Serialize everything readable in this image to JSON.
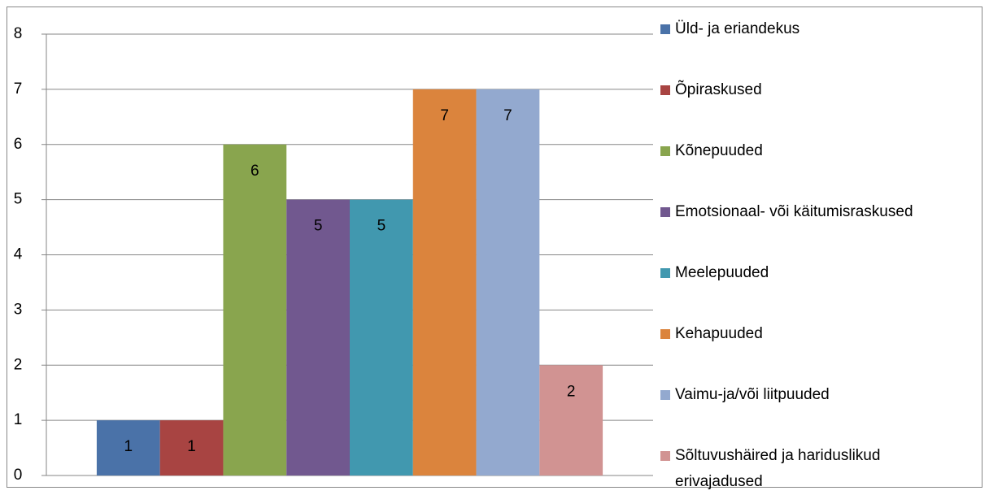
{
  "chart_data": {
    "type": "bar",
    "categories": [
      null
    ],
    "series": [
      {
        "name": "Üld- ja eriandekus",
        "color": "#4a72a8",
        "values": [
          1
        ]
      },
      {
        "name": "Õpiraskused",
        "color": "#a84442",
        "values": [
          1
        ]
      },
      {
        "name": "Kõnepuuded",
        "color": "#89a54e",
        "values": [
          6
        ]
      },
      {
        "name": "Emotsionaal- või käitumisraskused",
        "color": "#71588f",
        "values": [
          5
        ]
      },
      {
        "name": "Meelepuuded",
        "color": "#4198af",
        "values": [
          5
        ]
      },
      {
        "name": "Kehapuuded",
        "color": "#db843d",
        "values": [
          7
        ]
      },
      {
        "name": "Vaimu-ja/või liitpuuded",
        "color": "#93a9cf",
        "values": [
          7
        ]
      },
      {
        "name": "Sõltuvushäired ja hariduslikud erivajadused",
        "color": "#d19392",
        "values": [
          2
        ]
      }
    ],
    "ylim": [
      0,
      8
    ],
    "yticks": [
      0,
      1,
      2,
      3,
      4,
      5,
      6,
      7,
      8
    ],
    "grid": true,
    "legend": "right",
    "data_labels": true
  }
}
